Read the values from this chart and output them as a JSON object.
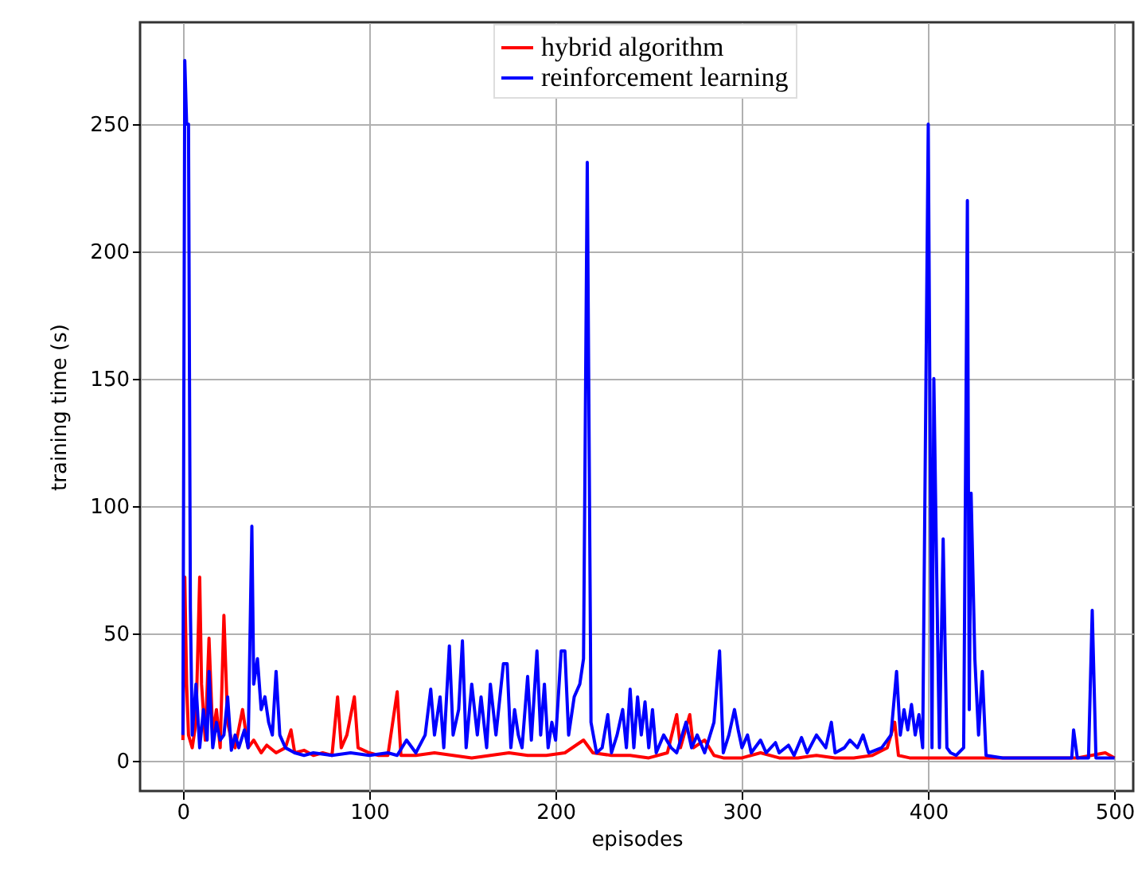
{
  "chart_data": {
    "type": "line",
    "xlabel": "episodes",
    "ylabel": "training time (s)",
    "xlim": [
      -23,
      510
    ],
    "ylim": [
      -12,
      290
    ],
    "xticks": [
      0,
      100,
      200,
      300,
      400,
      500
    ],
    "yticks": [
      0,
      50,
      100,
      150,
      200,
      250
    ],
    "grid": true,
    "legend": "top",
    "line_style": "solid",
    "series": [
      {
        "name": "hybrid algorithm",
        "color": "#ff0000",
        "x": [
          0,
          1,
          2,
          3,
          5,
          7,
          9,
          10,
          12,
          14,
          16,
          18,
          20,
          22,
          24,
          26,
          28,
          32,
          35,
          38,
          42,
          45,
          50,
          55,
          58,
          60,
          65,
          70,
          75,
          80,
          83,
          85,
          88,
          92,
          94,
          100,
          105,
          110,
          115,
          117,
          125,
          135,
          145,
          155,
          165,
          175,
          185,
          195,
          205,
          215,
          220,
          230,
          240,
          250,
          260,
          265,
          267,
          272,
          274,
          280,
          285,
          290,
          300,
          310,
          320,
          330,
          340,
          350,
          360,
          370,
          378,
          382,
          384,
          390,
          400,
          420,
          440,
          460,
          480,
          495,
          500
        ],
        "values": [
          8,
          72,
          30,
          10,
          5,
          15,
          72,
          30,
          8,
          48,
          10,
          20,
          5,
          57,
          15,
          8,
          5,
          20,
          5,
          8,
          3,
          6,
          3,
          5,
          12,
          3,
          4,
          2,
          3,
          2,
          25,
          5,
          10,
          25,
          5,
          3,
          2,
          2,
          27,
          2,
          2,
          3,
          2,
          1,
          2,
          3,
          2,
          2,
          3,
          8,
          3,
          2,
          2,
          1,
          3,
          18,
          5,
          18,
          5,
          8,
          2,
          1,
          1,
          3,
          1,
          1,
          2,
          1,
          1,
          2,
          5,
          15,
          2,
          1,
          1,
          1,
          1,
          1,
          1,
          3,
          1
        ]
      },
      {
        "name": "reinforcement learning",
        "color": "#0000ff",
        "x": [
          0,
          1,
          2,
          3,
          4,
          5,
          7,
          9,
          11,
          13,
          14,
          16,
          18,
          20,
          22,
          24,
          26,
          28,
          30,
          33,
          35,
          37,
          38,
          40,
          42,
          44,
          46,
          48,
          50,
          52,
          55,
          60,
          65,
          70,
          80,
          90,
          100,
          110,
          115,
          120,
          125,
          130,
          133,
          135,
          138,
          140,
          143,
          145,
          148,
          150,
          152,
          155,
          158,
          160,
          163,
          165,
          168,
          172,
          174,
          176,
          178,
          180,
          182,
          185,
          187,
          190,
          192,
          194,
          196,
          198,
          200,
          203,
          205,
          207,
          210,
          213,
          215,
          217,
          219,
          222,
          225,
          228,
          230,
          233,
          236,
          238,
          240,
          242,
          244,
          246,
          248,
          250,
          252,
          254,
          258,
          262,
          265,
          270,
          273,
          276,
          280,
          285,
          288,
          290,
          293,
          296,
          298,
          300,
          303,
          305,
          310,
          313,
          318,
          320,
          325,
          328,
          332,
          335,
          340,
          345,
          348,
          350,
          355,
          358,
          362,
          365,
          368,
          375,
          380,
          383,
          385,
          387,
          389,
          391,
          393,
          395,
          397,
          400,
          402,
          403,
          405,
          406,
          408,
          410,
          412,
          415,
          419,
          421,
          422,
          423,
          425,
          427,
          429,
          431,
          440,
          450,
          460,
          470,
          477,
          478,
          480,
          486,
          488,
          490,
          495,
          500
        ],
        "values": [
          10,
          275,
          250,
          250,
          60,
          10,
          30,
          5,
          20,
          8,
          35,
          5,
          15,
          8,
          10,
          25,
          4,
          10,
          5,
          12,
          5,
          92,
          30,
          40,
          20,
          25,
          15,
          10,
          35,
          10,
          5,
          3,
          2,
          3,
          2,
          3,
          2,
          3,
          2,
          8,
          3,
          10,
          28,
          10,
          25,
          5,
          45,
          10,
          20,
          47,
          5,
          30,
          10,
          25,
          5,
          30,
          10,
          38,
          38,
          5,
          20,
          10,
          5,
          33,
          8,
          43,
          10,
          30,
          5,
          15,
          8,
          43,
          43,
          10,
          25,
          30,
          40,
          235,
          15,
          3,
          5,
          18,
          3,
          10,
          20,
          5,
          28,
          5,
          25,
          10,
          23,
          5,
          20,
          3,
          10,
          5,
          3,
          15,
          5,
          10,
          3,
          15,
          43,
          3,
          10,
          20,
          12,
          5,
          10,
          3,
          8,
          3,
          7,
          3,
          6,
          2,
          9,
          3,
          10,
          5,
          15,
          3,
          5,
          8,
          5,
          10,
          3,
          5,
          10,
          35,
          10,
          20,
          12,
          22,
          10,
          18,
          5,
          250,
          5,
          150,
          50,
          5,
          87,
          5,
          3,
          2,
          5,
          220,
          20,
          105,
          40,
          10,
          35,
          2,
          1,
          1,
          1,
          1,
          1,
          12,
          1,
          1,
          59,
          1,
          1,
          1
        ]
      }
    ]
  }
}
